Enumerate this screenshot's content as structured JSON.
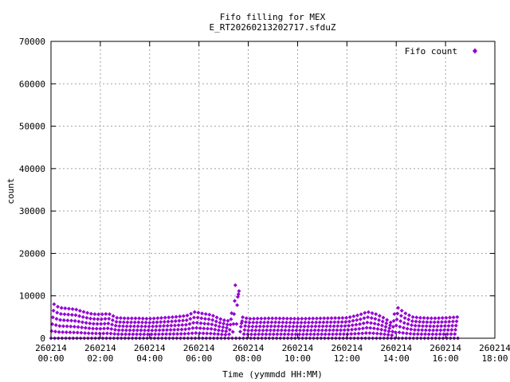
{
  "chart_data": {
    "type": "scatter",
    "title": "Fifo filling for MEX",
    "subtitle": "E_RT20260213202717.sfduZ",
    "xlabel": "Time (yymmdd HH:MM)",
    "ylabel": "count",
    "ylim": [
      0,
      70000
    ],
    "xlim_hours": [
      0,
      18
    ],
    "y_ticks": [
      "0",
      "10000",
      "20000",
      "30000",
      "40000",
      "50000",
      "60000",
      "70000"
    ],
    "x_ticks": [
      {
        "date": "260214",
        "time": "00:00"
      },
      {
        "date": "260214",
        "time": "02:00"
      },
      {
        "date": "260214",
        "time": "04:00"
      },
      {
        "date": "260214",
        "time": "06:00"
      },
      {
        "date": "260214",
        "time": "08:00"
      },
      {
        "date": "260214",
        "time": "10:00"
      },
      {
        "date": "260214",
        "time": "12:00"
      },
      {
        "date": "260214",
        "time": "14:00"
      },
      {
        "date": "260214",
        "time": "16:00"
      },
      {
        "date": "260214",
        "time": "18:00"
      }
    ],
    "grid": true,
    "legend_position": "top-right",
    "series": [
      {
        "name": "Fifo count",
        "color": "#9400d3",
        "marker": "diamond",
        "envelope": [
          [
            "00:00",
            8500
          ],
          [
            "00:20",
            7200
          ],
          [
            "00:40",
            7000
          ],
          [
            "01:00",
            6800
          ],
          [
            "01:20",
            6200
          ],
          [
            "01:40",
            5700
          ],
          [
            "02:00",
            5600
          ],
          [
            "02:20",
            5800
          ],
          [
            "02:40",
            4800
          ],
          [
            "03:00",
            4700
          ],
          [
            "03:30",
            4700
          ],
          [
            "04:00",
            4600
          ],
          [
            "04:30",
            4800
          ],
          [
            "05:00",
            5000
          ],
          [
            "05:30",
            5300
          ],
          [
            "05:50",
            6200
          ],
          [
            "06:10",
            5800
          ],
          [
            "06:30",
            5500
          ],
          [
            "06:50",
            4600
          ],
          [
            "07:10",
            4000
          ],
          [
            "07:20",
            6000
          ],
          [
            "07:25",
            9000
          ],
          [
            "07:30",
            14000
          ],
          [
            "07:33",
            19500
          ],
          [
            "07:36",
            13000
          ],
          [
            "07:40",
            8000
          ],
          [
            "07:45",
            5000
          ],
          [
            "08:00",
            4600
          ],
          [
            "09:00",
            4700
          ],
          [
            "10:00",
            4600
          ],
          [
            "11:00",
            4700
          ],
          [
            "12:00",
            4800
          ],
          [
            "12:30",
            5500
          ],
          [
            "12:50",
            6200
          ],
          [
            "13:10",
            5700
          ],
          [
            "13:30",
            4800
          ],
          [
            "13:50",
            3500
          ],
          [
            "14:00",
            7500
          ],
          [
            "14:20",
            6000
          ],
          [
            "14:40",
            5000
          ],
          [
            "15:00",
            4800
          ],
          [
            "15:30",
            4700
          ],
          [
            "16:00",
            4800
          ],
          [
            "16:30",
            5000
          ]
        ]
      }
    ]
  }
}
